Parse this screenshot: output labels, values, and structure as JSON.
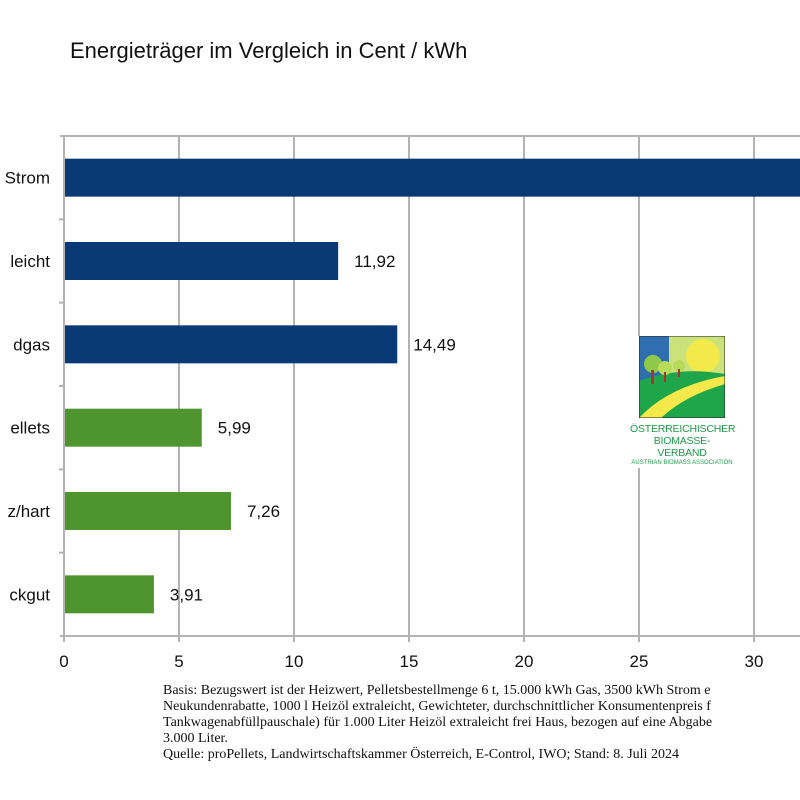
{
  "chart_data": {
    "type": "bar",
    "orientation": "horizontal",
    "title": "Energieträger im Vergleich in Cent / kWh",
    "categories": [
      "Strom",
      "leicht",
      "dgas",
      "ellets",
      "z/hart",
      "ckgut"
    ],
    "values": [
      null,
      11.92,
      14.49,
      5.99,
      7.26,
      3.91
    ],
    "data_labels": [
      "",
      "11,92",
      "14,49",
      "5,99",
      "7,26",
      "3,91"
    ],
    "bar_colors": [
      "#0a3a75",
      "#0a3a75",
      "#0a3a75",
      "#4f952f",
      "#4f952f",
      "#4f952f"
    ],
    "xlim": [
      0,
      32
    ],
    "xticks": [
      0,
      5,
      10,
      15,
      20,
      25,
      30
    ],
    "xtick_labels": [
      "0",
      "5",
      "10",
      "15",
      "20",
      "25",
      "30"
    ],
    "grid": true,
    "xlabel": "",
    "ylabel": ""
  },
  "logo": {
    "line1": "Österreichischer",
    "line2": "Biomasse-Verband",
    "line3": "Austrian Biomass Association"
  },
  "footnote": {
    "lines": [
      "Basis: Bezugswert ist der Heizwert, Pelletsbestellmenge 6 t, 15.000 kWh Gas, 3500 kWh Strom e",
      "Neukundenrabatte, 1000 l Heizöl extraleicht, Gewichteter, durchschnittlicher Konsumentenpreis f",
      "Tankwagenabfüllpauschale) für 1.000 Liter Heizöl extraleicht frei Haus, bezogen auf eine Abgabe",
      "3.000 Liter.",
      "Quelle: proPellets, Landwirtschaftskammer Österreich, E-Control, IWO; Stand: 8. Juli 2024"
    ]
  }
}
